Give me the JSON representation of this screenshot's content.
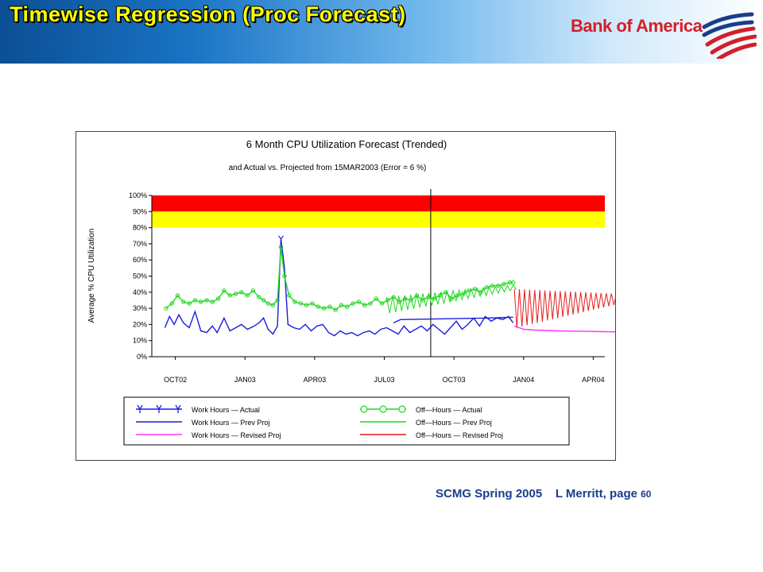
{
  "slide": {
    "title": "Timewise Regression (Proc Forecast)",
    "brand": "Bank of America",
    "footer_left": "SCMG Spring 2005",
    "footer_right": "L Merritt, page",
    "page_number": "60"
  },
  "colors": {
    "title": "#ffff00",
    "brand": "#d21f2a",
    "work_actual": "#1c1cdc",
    "work_prev_proj": "#1c1cdc",
    "work_revised_proj": "#ff33ff",
    "off_actual": "#1ed81e",
    "off_prev_proj": "#1ed81e",
    "off_revised_proj": "#e81c1c",
    "red_zone": "#ff0000",
    "yellow_zone": "#ffff00"
  },
  "chart_data": {
    "type": "line",
    "title": "6 Month CPU Utilization Forecast (Trended)",
    "subtitle": "and Actual vs. Projected from 15MAR2003 (Error = 6 %)",
    "ylabel": "Average % CPU Utilization",
    "ylim": [
      0,
      100
    ],
    "yticks": [
      "0%",
      "10%",
      "20%",
      "30%",
      "40%",
      "50%",
      "60%",
      "70%",
      "80%",
      "90%",
      "100%"
    ],
    "x_tick_labels": [
      "OCT02",
      "JAN03",
      "APR03",
      "JUL03",
      "OCT03",
      "JAN04",
      "APR04"
    ],
    "xlim_months": [
      0,
      19
    ],
    "forecast_start_month": 11.5,
    "zones": [
      {
        "name": "red",
        "from": 90,
        "to": 100
      },
      {
        "name": "yellow",
        "from": 80,
        "to": 90
      }
    ],
    "series": [
      {
        "name": "Work Hours - Actual",
        "style": "line-marker-y",
        "color": "#1c1cdc",
        "points": [
          [
            0.05,
            18
          ],
          [
            0.25,
            25
          ],
          [
            0.45,
            20
          ],
          [
            0.65,
            26
          ],
          [
            0.85,
            21
          ],
          [
            1.1,
            18
          ],
          [
            1.35,
            28
          ],
          [
            1.6,
            16
          ],
          [
            1.85,
            15
          ],
          [
            2.1,
            19
          ],
          [
            2.3,
            15
          ],
          [
            2.6,
            24
          ],
          [
            2.85,
            16
          ],
          [
            3.1,
            18
          ],
          [
            3.35,
            20
          ],
          [
            3.6,
            17
          ],
          [
            3.9,
            19
          ],
          [
            4.1,
            21
          ],
          [
            4.3,
            24
          ],
          [
            4.5,
            17
          ],
          [
            4.7,
            14
          ],
          [
            4.9,
            19
          ],
          [
            5.05,
            73
          ],
          [
            5.2,
            55
          ],
          [
            5.35,
            20
          ],
          [
            5.6,
            18
          ],
          [
            5.85,
            17
          ],
          [
            6.1,
            20
          ],
          [
            6.35,
            16
          ],
          [
            6.6,
            19
          ],
          [
            6.85,
            20
          ],
          [
            7.1,
            15
          ],
          [
            7.35,
            13
          ],
          [
            7.6,
            16
          ],
          [
            7.85,
            14
          ],
          [
            8.1,
            15
          ],
          [
            8.35,
            13
          ],
          [
            8.6,
            15
          ],
          [
            8.85,
            16
          ],
          [
            9.1,
            14
          ],
          [
            9.35,
            17
          ],
          [
            9.6,
            18
          ],
          [
            9.85,
            16
          ],
          [
            10.1,
            14
          ],
          [
            10.35,
            19
          ],
          [
            10.6,
            15
          ],
          [
            10.85,
            17
          ],
          [
            11.1,
            19
          ],
          [
            11.35,
            16
          ],
          [
            11.6,
            20
          ],
          [
            11.85,
            17
          ],
          [
            12.1,
            14
          ],
          [
            12.35,
            18
          ],
          [
            12.6,
            22
          ],
          [
            12.85,
            17
          ],
          [
            13.1,
            20
          ],
          [
            13.35,
            24
          ],
          [
            13.6,
            19
          ],
          [
            13.85,
            25
          ],
          [
            14.1,
            22
          ],
          [
            14.35,
            24
          ],
          [
            14.6,
            23
          ],
          [
            14.85,
            25
          ],
          [
            15.05,
            21
          ]
        ]
      },
      {
        "name": "Work Hours - Prev Proj",
        "style": "line",
        "color": "#1c1cdc",
        "points": [
          [
            9.9,
            21
          ],
          [
            10.2,
            23
          ],
          [
            12,
            23.5
          ],
          [
            14,
            24
          ],
          [
            15.05,
            24.5
          ]
        ]
      },
      {
        "name": "Work Hours - Revised Proj",
        "style": "line",
        "color": "#ff33ff",
        "points": [
          [
            15.1,
            19
          ],
          [
            15.5,
            17
          ],
          [
            16,
            16.5
          ],
          [
            17,
            16
          ],
          [
            18,
            15.8
          ],
          [
            19,
            15.5
          ],
          [
            20,
            15.2
          ],
          [
            20.3,
            15
          ]
        ]
      },
      {
        "name": "Off-Hours - Actual",
        "style": "line-marker-circle",
        "color": "#1ed81e",
        "points": [
          [
            0.1,
            30
          ],
          [
            0.35,
            33
          ],
          [
            0.6,
            38
          ],
          [
            0.85,
            34
          ],
          [
            1.1,
            33
          ],
          [
            1.35,
            35
          ],
          [
            1.6,
            34
          ],
          [
            1.85,
            35
          ],
          [
            2.1,
            34
          ],
          [
            2.35,
            36
          ],
          [
            2.6,
            41
          ],
          [
            2.85,
            38
          ],
          [
            3.1,
            39
          ],
          [
            3.35,
            40
          ],
          [
            3.6,
            38
          ],
          [
            3.85,
            41
          ],
          [
            4.1,
            37
          ],
          [
            4.3,
            35
          ],
          [
            4.5,
            33
          ],
          [
            4.7,
            32
          ],
          [
            4.9,
            35
          ],
          [
            5.05,
            68
          ],
          [
            5.2,
            50
          ],
          [
            5.4,
            38
          ],
          [
            5.65,
            34
          ],
          [
            5.9,
            33
          ],
          [
            6.15,
            32
          ],
          [
            6.4,
            33
          ],
          [
            6.65,
            31
          ],
          [
            6.9,
            30
          ],
          [
            7.15,
            31
          ],
          [
            7.4,
            29
          ],
          [
            7.65,
            32
          ],
          [
            7.9,
            31
          ],
          [
            8.15,
            33
          ],
          [
            8.4,
            34
          ],
          [
            8.65,
            32
          ],
          [
            8.9,
            33
          ],
          [
            9.15,
            36
          ],
          [
            9.4,
            33
          ],
          [
            9.65,
            35
          ],
          [
            9.9,
            37
          ],
          [
            10.15,
            34
          ],
          [
            10.4,
            36
          ],
          [
            10.65,
            35
          ],
          [
            10.9,
            38
          ],
          [
            11.15,
            35
          ],
          [
            11.4,
            37
          ],
          [
            11.65,
            36
          ],
          [
            11.9,
            38
          ],
          [
            12.15,
            40
          ],
          [
            12.4,
            36
          ],
          [
            12.65,
            38
          ],
          [
            12.9,
            39
          ],
          [
            13.15,
            41
          ],
          [
            13.4,
            42
          ],
          [
            13.65,
            40
          ],
          [
            13.9,
            43
          ],
          [
            14.15,
            44
          ],
          [
            14.4,
            44
          ],
          [
            14.65,
            45
          ],
          [
            14.9,
            46
          ],
          [
            15.05,
            46
          ]
        ]
      },
      {
        "name": "Off-Hours - Prev Proj",
        "style": "sawtooth",
        "color": "#1ed81e",
        "start": 9.6,
        "end": 15.05,
        "mid_start": 32,
        "mid_end": 43,
        "amp_start": 10,
        "amp_end": 3,
        "period": 0.26
      },
      {
        "name": "Off-Hours - Revised Proj",
        "style": "sawtooth",
        "color": "#e81c1c",
        "start": 15.1,
        "end": 20.3,
        "mid_start": 30,
        "mid_end": 37,
        "amp_start": 24,
        "amp_end": 3,
        "period": 0.22
      }
    ],
    "legend": {
      "placement": "bottom",
      "entries": [
        {
          "label": "Work Hours — Actual",
          "marker": "Y",
          "color": "#1c1cdc"
        },
        {
          "label": "Off—Hours — Actual",
          "marker": "O",
          "color": "#1ed81e"
        },
        {
          "label": "Work Hours — Prev Proj",
          "marker": "line",
          "color": "#1c1cdc"
        },
        {
          "label": "Off—Hours — Prev Proj",
          "marker": "line",
          "color": "#1ed81e"
        },
        {
          "label": "Work Hours — Revised Proj",
          "marker": "line",
          "color": "#ff33ff"
        },
        {
          "label": "Off—Hours — Revised Proj",
          "marker": "line",
          "color": "#e81c1c"
        }
      ]
    }
  }
}
